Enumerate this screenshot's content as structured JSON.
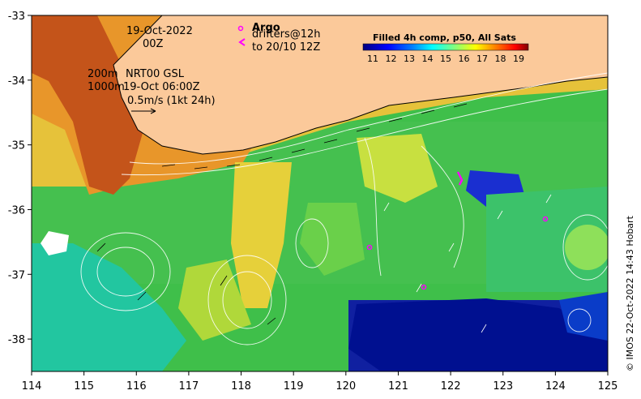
{
  "map": {
    "x_ticks": [
      "114",
      "115",
      "116",
      "117",
      "118",
      "119",
      "120",
      "121",
      "122",
      "123",
      "124",
      "125"
    ],
    "y_ticks": [
      "-33",
      "-34",
      "-35",
      "-36",
      "-37",
      "-38"
    ],
    "lon_range": [
      114,
      125
    ],
    "lat_range": [
      -38.5,
      -33
    ]
  },
  "annotations": {
    "date": "19-Oct-2022",
    "time": "00Z",
    "depth_200": "200m",
    "depth_1000": "1000m",
    "model_label": "NRT00 GSL",
    "model_time": "19-Oct 06:00Z",
    "scale_label": "0.5m/s (1kt 24h)",
    "argo_label": "Argo",
    "drifters_label": "drifters@12h",
    "drifters_to": "to 20/10 12Z"
  },
  "colorbar": {
    "title": "Filled 4h comp, p50, All Sats",
    "ticks": [
      "11",
      "12",
      "13",
      "14",
      "15",
      "16",
      "17",
      "18",
      "19"
    ],
    "colors": [
      "#00007f",
      "#0000ff",
      "#007fff",
      "#00ffff",
      "#7fff7f",
      "#ffff00",
      "#ff7f00",
      "#ff0000",
      "#7f0000"
    ]
  },
  "credit": "© IMOS 22-Oct-2022 14:43 Hobart",
  "colors": {
    "land": "#fbc99a",
    "argo_marker": "#ff00ff"
  }
}
